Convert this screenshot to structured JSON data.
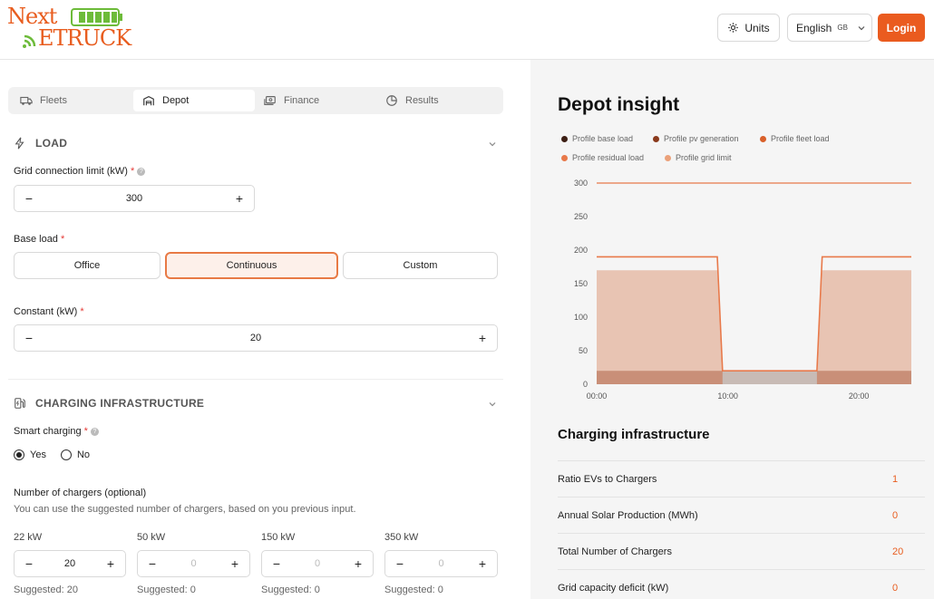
{
  "header": {
    "logo_text_top": "Next",
    "logo_text_bottom": "ETRUCK",
    "units_label": "Units",
    "language_label": "English",
    "language_flag": "GB",
    "login_label": "Login"
  },
  "tabs": [
    {
      "label": "Fleets",
      "icon": "truck-icon"
    },
    {
      "label": "Depot",
      "icon": "depot-icon"
    },
    {
      "label": "Finance",
      "icon": "money-icon"
    },
    {
      "label": "Results",
      "icon": "pie-chart-icon"
    }
  ],
  "active_tab": "Depot",
  "load": {
    "section_title": "LOAD",
    "grid_label": "Grid connection limit (kW)",
    "grid_value": "300",
    "base_load_label": "Base load",
    "base_load_options": [
      "Office",
      "Continuous",
      "Custom"
    ],
    "base_load_selected": "Continuous",
    "constant_label": "Constant (kW)",
    "constant_value": "20"
  },
  "charging": {
    "section_title": "CHARGING INFRASTRUCTURE",
    "smart_label": "Smart charging",
    "smart_yes": "Yes",
    "smart_no": "No",
    "smart_selected": "Yes",
    "chargers_label": "Number of chargers (optional)",
    "chargers_hint": "You can use the suggested number of chargers, based on you previous input.",
    "chargers": [
      {
        "label": "22 kW",
        "value": "20",
        "suggested": "Suggested: 20"
      },
      {
        "label": "50 kW",
        "value": "0",
        "suggested": "Suggested: 0"
      },
      {
        "label": "150 kW",
        "value": "0",
        "suggested": "Suggested: 0"
      },
      {
        "label": "350 kW",
        "value": "0",
        "suggested": "Suggested: 0"
      }
    ]
  },
  "insight": {
    "title": "Depot insight",
    "legend": [
      {
        "label": "Profile base load",
        "color": "#3d1f14"
      },
      {
        "label": "Profile pv generation",
        "color": "#8a3a1c"
      },
      {
        "label": "Profile fleet load",
        "color": "#d9602a"
      },
      {
        "label": "Profile residual load",
        "color": "#e8794a"
      },
      {
        "label": "Profile grid limit",
        "color": "#eba17a"
      }
    ]
  },
  "chart_data": {
    "type": "area",
    "x_ticks": [
      "00:00",
      "10:00",
      "20:00"
    ],
    "y_ticks": [
      0,
      50,
      100,
      150,
      200,
      250,
      300
    ],
    "ylim": [
      0,
      300
    ],
    "xlim": [
      0,
      24
    ],
    "series": [
      {
        "name": "Profile grid limit",
        "color": "#e8794a",
        "x": [
          0,
          24
        ],
        "y": [
          300,
          300
        ]
      },
      {
        "name": "Profile residual load",
        "color": "#e8794a",
        "x": [
          0,
          9.2,
          9.6,
          16.8,
          17.2,
          24
        ],
        "y": [
          190,
          190,
          20,
          20,
          190,
          190
        ]
      },
      {
        "name": "Profile fleet load",
        "color": "#e8c4b3",
        "x": [
          0,
          9.2,
          9.6,
          16.8,
          17.2,
          24
        ],
        "y": [
          170,
          170,
          0,
          0,
          170,
          170
        ]
      },
      {
        "name": "Profile base load",
        "color": "#c98f78",
        "x": [
          0,
          24
        ],
        "y": [
          20,
          20
        ]
      }
    ]
  },
  "infrastructure": {
    "title": "Charging infrastructure",
    "rows": [
      {
        "label": "Ratio EVs to Chargers",
        "value": "1"
      },
      {
        "label": "Annual Solar Production (MWh)",
        "value": "0"
      },
      {
        "label": "Total Number of Chargers",
        "value": "20"
      },
      {
        "label": "Grid capacity deficit (kW)",
        "value": "0"
      }
    ]
  }
}
